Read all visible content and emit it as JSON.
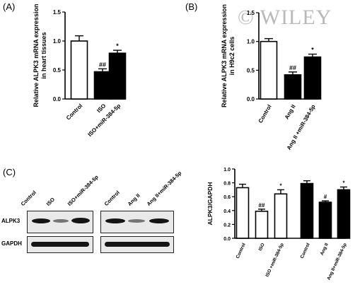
{
  "panels": {
    "a": "(A)",
    "b": "(B)",
    "c": "(C)"
  },
  "watermark": "© WILEY",
  "chart_data": [
    {
      "type": "bar",
      "id": "A",
      "ylabel": "Relative ALPK3 mRNA expression\nin heart tissues",
      "ylim": [
        0,
        1.5
      ],
      "yticks": [
        "0.0",
        "0.5",
        "1.0",
        "1.5"
      ],
      "categories": [
        "Control",
        "ISO",
        "ISO+miR-384-5p"
      ],
      "values": [
        1.0,
        0.47,
        0.79
      ],
      "errors": [
        0.09,
        0.05,
        0.05
      ],
      "fills": [
        "#ffffff",
        "#000000",
        "#000000"
      ],
      "annotations": [
        "",
        "##",
        "*"
      ]
    },
    {
      "type": "bar",
      "id": "B",
      "ylabel": "Relative ALPK3 mRNA expression\nin H9c2 cells",
      "ylim": [
        0,
        1.5
      ],
      "yticks": [
        "0.0",
        "0.5",
        "1.0",
        "1.5"
      ],
      "categories": [
        "Control",
        "Ang II",
        "Ang II +miR-384-5p"
      ],
      "values": [
        1.0,
        0.42,
        0.73
      ],
      "errors": [
        0.05,
        0.05,
        0.05
      ],
      "fills": [
        "#ffffff",
        "#000000",
        "#000000"
      ],
      "annotations": [
        "",
        "##",
        "*"
      ]
    },
    {
      "type": "bar",
      "id": "C",
      "ylabel": "ALPK3/GAPDH",
      "ylim": [
        0,
        1.0
      ],
      "yticks": [
        "0.0",
        "0.2",
        "0.4",
        "0.6",
        "0.8",
        "1.0"
      ],
      "categories": [
        "Control",
        "ISO",
        "ISO +miR-384-5p",
        "Control",
        "Ang II",
        "Ang II+miR-384-5p"
      ],
      "values": [
        0.73,
        0.39,
        0.64,
        0.79,
        0.52,
        0.7
      ],
      "errors": [
        0.05,
        0.03,
        0.06,
        0.04,
        0.02,
        0.04
      ],
      "fills": [
        "#ffffff",
        "#ffffff",
        "#ffffff",
        "#000000",
        "#000000",
        "#000000"
      ],
      "annotations": [
        "",
        "##",
        "*",
        "",
        "#",
        "*"
      ]
    }
  ],
  "blot": {
    "row_labels": [
      "ALPK3",
      "GAPDH"
    ],
    "left_lanes": [
      "Control",
      "ISO",
      "ISO+miR-384-5p"
    ],
    "right_lanes": [
      "Control",
      "Ang II",
      "Ang II+miR-384-5p"
    ],
    "alpk3_intensity_left": [
      0.8,
      0.45,
      0.85
    ],
    "alpk3_intensity_right": [
      0.75,
      0.45,
      0.7
    ]
  }
}
